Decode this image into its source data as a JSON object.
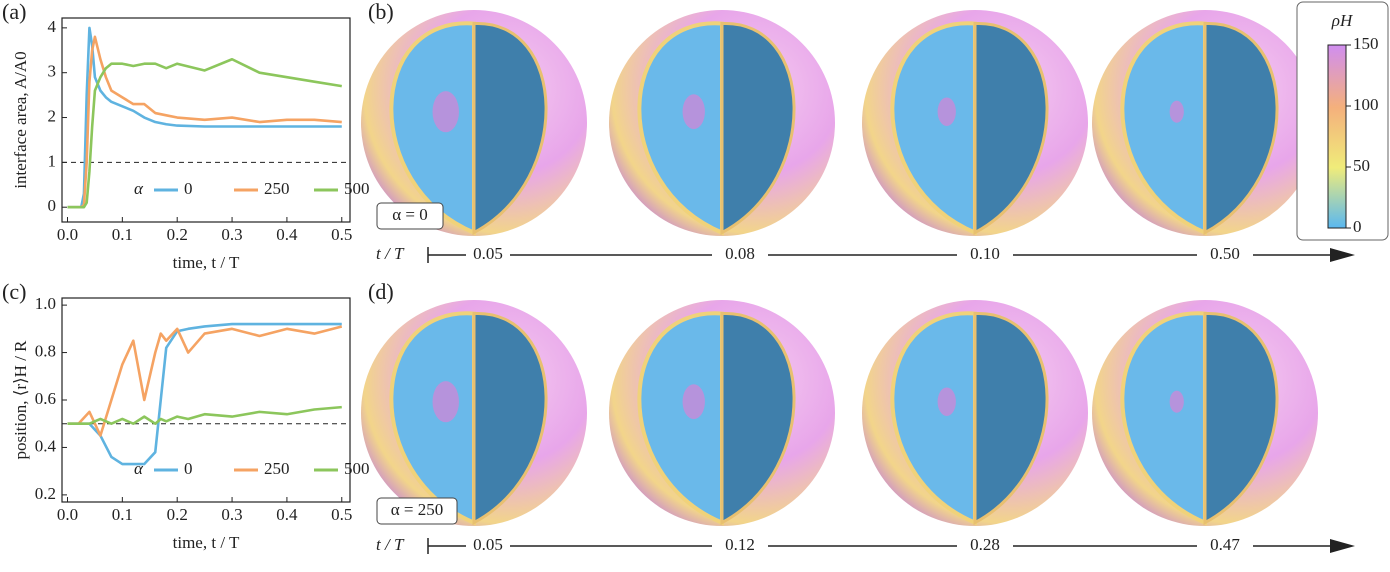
{
  "chart_data": [
    {
      "type": "line",
      "ylabel": "interface area, A/A0",
      "xlabel": "time,  t / T",
      "x": [
        0,
        0.01,
        0.02,
        0.025,
        0.03,
        0.035,
        0.04,
        0.045,
        0.05,
        0.06,
        0.07,
        0.08,
        0.1,
        0.12,
        0.14,
        0.16,
        0.18,
        0.2,
        0.25,
        0.3,
        0.35,
        0.4,
        0.45,
        0.5
      ],
      "series": [
        {
          "name": "0",
          "color": "#5fb3e0",
          "values": [
            0,
            0,
            0,
            0,
            0.3,
            2.5,
            4.0,
            3.6,
            2.9,
            2.6,
            2.45,
            2.35,
            2.25,
            2.15,
            2.0,
            1.9,
            1.85,
            1.82,
            1.8,
            1.8,
            1.8,
            1.8,
            1.8,
            1.8
          ]
        },
        {
          "name": "250",
          "color": "#f5a363",
          "values": [
            0,
            0,
            0,
            0,
            0.05,
            1.0,
            2.8,
            3.5,
            3.8,
            3.3,
            2.9,
            2.6,
            2.45,
            2.3,
            2.3,
            2.1,
            2.05,
            2.0,
            1.95,
            2.0,
            1.9,
            1.95,
            1.95,
            1.9
          ]
        },
        {
          "name": "500",
          "color": "#8cc65c",
          "values": [
            0,
            0,
            0,
            0,
            0,
            0.1,
            0.8,
            1.8,
            2.6,
            2.9,
            3.1,
            3.2,
            3.2,
            3.15,
            3.2,
            3.2,
            3.1,
            3.2,
            3.05,
            3.3,
            3.0,
            2.9,
            2.8,
            2.7
          ]
        }
      ],
      "legend_title": "α",
      "legend": "lower right",
      "xlim": [
        -0.01,
        0.515
      ],
      "xticks": [
        {
          "value": 0,
          "label": "0.0"
        },
        0.1,
        0.2,
        0.3,
        0.4,
        0.5
      ],
      "ylim": [
        -0.33,
        4.22
      ],
      "yticks": [
        0,
        1,
        2,
        3,
        4
      ],
      "hline": 1
    },
    {
      "type": "line",
      "ylabel": "position, ⟨r⟩H / R",
      "xlabel": "time,  t / T",
      "x": [
        0,
        0.02,
        0.04,
        0.06,
        0.08,
        0.1,
        0.12,
        0.14,
        0.16,
        0.17,
        0.18,
        0.2,
        0.22,
        0.25,
        0.3,
        0.35,
        0.4,
        0.45,
        0.5
      ],
      "series": [
        {
          "name": "0",
          "color": "#5fb3e0",
          "values": [
            0.5,
            0.5,
            0.5,
            0.45,
            0.36,
            0.33,
            0.33,
            0.33,
            0.38,
            0.6,
            0.82,
            0.89,
            0.9,
            0.91,
            0.92,
            0.92,
            0.92,
            0.92,
            0.92
          ]
        },
        {
          "name": "250",
          "color": "#f5a363",
          "values": [
            0.5,
            0.5,
            0.55,
            0.45,
            0.6,
            0.75,
            0.85,
            0.6,
            0.8,
            0.88,
            0.85,
            0.9,
            0.8,
            0.88,
            0.9,
            0.87,
            0.9,
            0.88,
            0.91
          ]
        },
        {
          "name": "500",
          "color": "#8cc65c",
          "values": [
            0.5,
            0.5,
            0.5,
            0.52,
            0.5,
            0.52,
            0.5,
            0.53,
            0.5,
            0.52,
            0.51,
            0.53,
            0.52,
            0.54,
            0.53,
            0.55,
            0.54,
            0.56,
            0.57
          ]
        }
      ],
      "legend_title": "α",
      "legend": "lower right",
      "xlim": [
        -0.01,
        0.515
      ],
      "xticks": [
        {
          "value": 0,
          "label": "0.0"
        },
        0.1,
        0.2,
        0.3,
        0.4,
        0.5
      ],
      "ylim": [
        0.17,
        1.03
      ],
      "yticks": [
        0.2,
        0.4,
        0.6,
        0.8,
        {
          "value": 1,
          "label": "1.0"
        }
      ],
      "hline": 0.5
    }
  ],
  "panel_labels": [
    "(a)",
    "(b)",
    "(c)",
    "(d)"
  ],
  "snapshots": [
    {
      "alpha_label": "α = 0",
      "axis_label": "t / T",
      "times": [
        "0.05",
        "0.08",
        "0.10",
        "0.50"
      ]
    },
    {
      "alpha_label": "α = 250",
      "axis_label": "t / T",
      "times": [
        "0.05",
        "0.12",
        "0.28",
        "0.47"
      ]
    }
  ],
  "colorbar": {
    "title": "ρH",
    "lim": [
      0,
      150
    ],
    "ticks": [
      0,
      50,
      100,
      150
    ]
  }
}
